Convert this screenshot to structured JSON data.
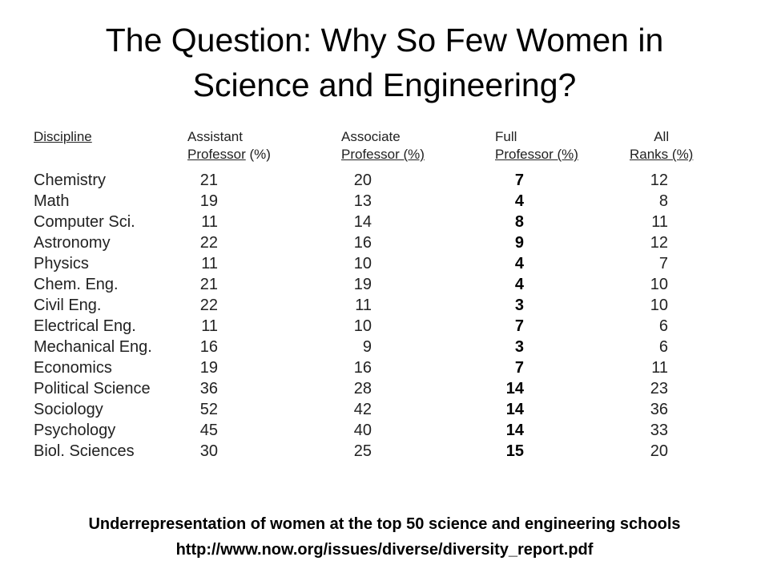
{
  "title": {
    "line1": "The Question:   Why So Few Women in",
    "line2": "Science and Engineering?"
  },
  "table": {
    "headers": [
      {
        "line1": "Discipline",
        "line2": ""
      },
      {
        "line1": "Assistant",
        "line2a": "Professor",
        "line2b": " (%)"
      },
      {
        "line1": "Associate",
        "line2": "Professor  (%)"
      },
      {
        "line1": "Full",
        "line2": "Professor  (%)"
      },
      {
        "line1": "All",
        "line2": "Ranks (%)"
      }
    ],
    "rows": [
      [
        "Chemistry",
        "21",
        "20",
        "7",
        "12"
      ],
      [
        "Math",
        "19",
        "13",
        "4",
        "8"
      ],
      [
        "Computer Sci.",
        "11",
        "14",
        "8",
        "11"
      ],
      [
        "Astronomy",
        "22",
        "16",
        "9",
        "12"
      ],
      [
        "Physics",
        "11",
        "10",
        "4",
        "7"
      ],
      [
        "Chem. Eng.",
        "21",
        "19",
        "4",
        "10"
      ],
      [
        "Civil Eng.",
        "22",
        "11",
        "3",
        "10"
      ],
      [
        "Electrical Eng.",
        "11",
        "10",
        "7",
        "6"
      ],
      [
        "Mechanical Eng.",
        "16",
        "9",
        "3",
        "6"
      ],
      [
        "Economics",
        "19",
        "16",
        "7",
        "11"
      ],
      [
        "Political Science",
        "36",
        "28",
        "14",
        "23"
      ],
      [
        "Sociology",
        "52",
        "42",
        "14",
        "36"
      ],
      [
        "Psychology",
        "45",
        "40",
        "14",
        "33"
      ],
      [
        "Biol. Sciences",
        "30",
        "25",
        "15",
        "20"
      ]
    ]
  },
  "footer": {
    "caption": "Underrepresentation of women at the top 50 science and engineering schools",
    "url": "http://www.now.org/issues/diverse/diversity_report.pdf"
  }
}
